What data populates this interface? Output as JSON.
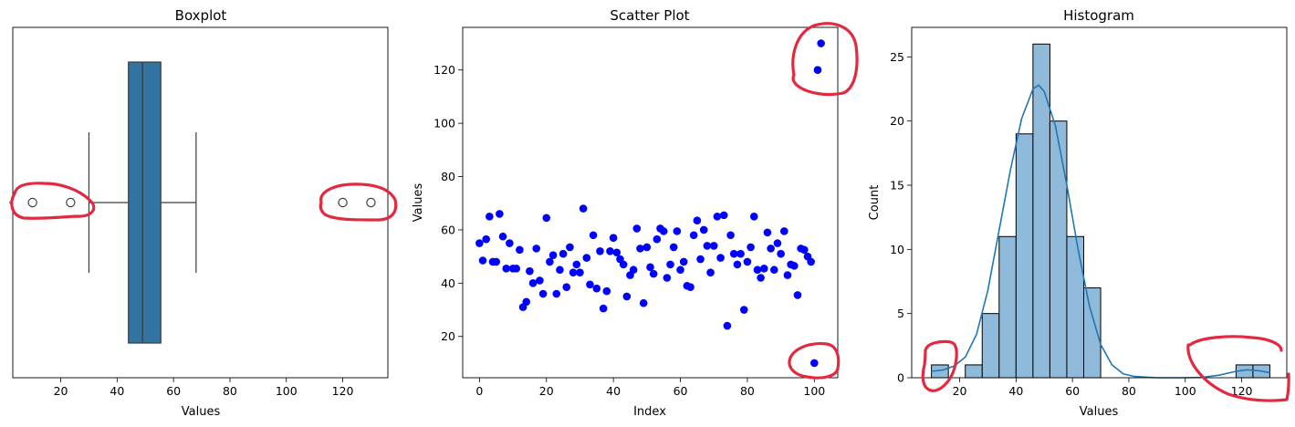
{
  "colors": {
    "box": "#3274a1",
    "scatter": "#0000ff",
    "hist_fill": "#8fbad9",
    "kde": "#1f77b4",
    "annotation": "#e3293f"
  },
  "chart_data": [
    {
      "type": "boxplot",
      "title": "Boxplot",
      "xlabel": "Values",
      "ylabel": "",
      "xlim": [
        3,
        136
      ],
      "xticks": [
        "20",
        "40",
        "60",
        "80",
        "100",
        "120"
      ],
      "stats": {
        "q1": 44,
        "median": 49,
        "q3": 55.5,
        "whisker_low": 30,
        "whisker_high": 68
      },
      "outliers": [
        10,
        23.5,
        120,
        130
      ],
      "annotations": [
        "outliers-left",
        "outliers-right"
      ]
    },
    {
      "type": "scatter",
      "title": "Scatter Plot",
      "xlabel": "Index",
      "ylabel": "Values",
      "xlim": [
        -5,
        107
      ],
      "ylim": [
        4.5,
        136
      ],
      "xticks": [
        "0",
        "20",
        "40",
        "60",
        "80",
        "100"
      ],
      "yticks": [
        "20",
        "40",
        "60",
        "80",
        "100",
        "120"
      ],
      "points": [
        [
          0,
          55
        ],
        [
          1,
          48.5
        ],
        [
          2,
          56.5
        ],
        [
          3,
          65
        ],
        [
          4,
          48
        ],
        [
          5,
          48
        ],
        [
          6,
          66
        ],
        [
          7,
          57.5
        ],
        [
          8,
          45.5
        ],
        [
          9,
          55
        ],
        [
          10,
          45.5
        ],
        [
          11,
          45.5
        ],
        [
          12,
          52.5
        ],
        [
          13,
          31
        ],
        [
          14,
          33
        ],
        [
          15,
          44.5
        ],
        [
          16,
          40
        ],
        [
          17,
          53
        ],
        [
          18,
          41
        ],
        [
          19,
          36
        ],
        [
          20,
          64.5
        ],
        [
          21,
          48
        ],
        [
          22,
          50.5
        ],
        [
          23,
          36
        ],
        [
          24,
          45
        ],
        [
          25,
          51
        ],
        [
          26,
          38.5
        ],
        [
          27,
          53.5
        ],
        [
          28,
          44
        ],
        [
          29,
          47
        ],
        [
          30,
          44
        ],
        [
          31,
          68
        ],
        [
          32,
          49.5
        ],
        [
          33,
          39.5
        ],
        [
          34,
          58
        ],
        [
          35,
          38
        ],
        [
          36,
          52
        ],
        [
          37,
          30.5
        ],
        [
          38,
          37
        ],
        [
          39,
          52
        ],
        [
          40,
          57
        ],
        [
          41,
          51.5
        ],
        [
          42,
          49
        ],
        [
          43,
          47
        ],
        [
          44,
          35
        ],
        [
          45,
          43
        ],
        [
          46,
          45
        ],
        [
          47,
          60.5
        ],
        [
          48,
          53
        ],
        [
          49,
          32.5
        ],
        [
          50,
          53.5
        ],
        [
          51,
          46
        ],
        [
          52,
          43.5
        ],
        [
          53,
          56.5
        ],
        [
          54,
          60.5
        ],
        [
          55,
          59.5
        ],
        [
          56,
          42
        ],
        [
          57,
          47
        ],
        [
          58,
          53.5
        ],
        [
          59,
          59.5
        ],
        [
          60,
          45
        ],
        [
          61,
          48
        ],
        [
          62,
          39
        ],
        [
          63,
          38.5
        ],
        [
          64,
          58
        ],
        [
          65,
          63.5
        ],
        [
          66,
          49
        ],
        [
          67,
          60
        ],
        [
          68,
          54
        ],
        [
          69,
          44
        ],
        [
          70,
          54
        ],
        [
          71,
          65
        ],
        [
          72,
          49.5
        ],
        [
          73,
          65.5
        ],
        [
          74,
          24
        ],
        [
          75,
          58
        ],
        [
          76,
          51
        ],
        [
          77,
          47
        ],
        [
          78,
          51
        ],
        [
          79,
          30
        ],
        [
          80,
          48
        ],
        [
          81,
          53.5
        ],
        [
          82,
          65
        ],
        [
          83,
          45
        ],
        [
          84,
          42
        ],
        [
          85,
          45.5
        ],
        [
          86,
          59
        ],
        [
          87,
          53
        ],
        [
          88,
          45
        ],
        [
          89,
          55
        ],
        [
          90,
          51
        ],
        [
          91,
          59.5
        ],
        [
          92,
          43
        ],
        [
          93,
          47
        ],
        [
          94,
          46.5
        ],
        [
          95,
          35.5
        ],
        [
          96,
          53
        ],
        [
          97,
          52.5
        ],
        [
          98,
          50
        ],
        [
          99,
          48
        ],
        [
          100,
          10
        ],
        [
          101,
          120
        ],
        [
          102,
          130
        ]
      ],
      "annotations": [
        "outliers-top-right",
        "outlier-bottom-right"
      ]
    },
    {
      "type": "histogram",
      "title": "Histogram",
      "xlabel": "Values",
      "ylabel": "Count",
      "xlim": [
        3,
        136
      ],
      "ylim": [
        0,
        27.3
      ],
      "xticks": [
        "20",
        "40",
        "60",
        "80",
        "100",
        "120"
      ],
      "yticks": [
        "0",
        "5",
        "10",
        "15",
        "20",
        "25"
      ],
      "bin_edges": [
        10,
        16,
        22,
        28,
        34,
        40,
        46,
        52,
        58,
        64,
        70,
        76,
        82,
        88,
        94,
        100,
        106,
        112,
        118,
        124,
        130
      ],
      "counts": [
        1,
        0,
        1,
        5,
        11,
        19,
        26,
        20,
        11,
        7,
        0,
        0,
        0,
        0,
        0,
        0,
        0,
        0,
        1,
        1
      ],
      "kde": [
        [
          10,
          0.5
        ],
        [
          14,
          0.6
        ],
        [
          18,
          0.9
        ],
        [
          22,
          1.6
        ],
        [
          26,
          3.4
        ],
        [
          30,
          6.8
        ],
        [
          34,
          11.5
        ],
        [
          38,
          16.2
        ],
        [
          42,
          20.2
        ],
        [
          46,
          22.5
        ],
        [
          48,
          22.8
        ],
        [
          50,
          22.3
        ],
        [
          54,
          19.6
        ],
        [
          58,
          15
        ],
        [
          62,
          10
        ],
        [
          66,
          5.6
        ],
        [
          70,
          2.6
        ],
        [
          74,
          1
        ],
        [
          78,
          0.3
        ],
        [
          82,
          0.1
        ],
        [
          90,
          0
        ],
        [
          100,
          0
        ],
        [
          106,
          0.03
        ],
        [
          112,
          0.2
        ],
        [
          118,
          0.5
        ],
        [
          122,
          0.62
        ],
        [
          126,
          0.55
        ],
        [
          130,
          0.4
        ]
      ],
      "annotations": [
        "outlier-left",
        "outliers-right"
      ]
    }
  ]
}
